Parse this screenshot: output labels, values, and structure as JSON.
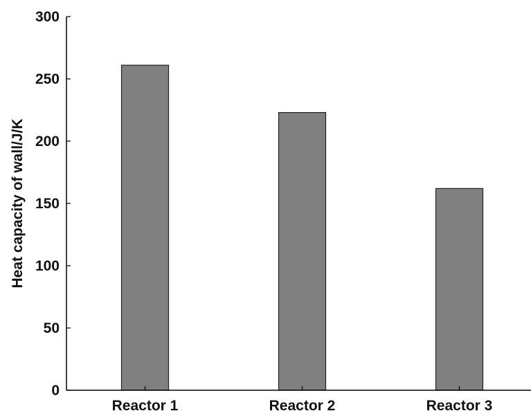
{
  "chart_data": {
    "type": "bar",
    "title": "",
    "xlabel": "",
    "ylabel": "Heat capacity of wall/J/K",
    "categories": [
      "Reactor 1",
      "Reactor 2",
      "Reactor 3"
    ],
    "values": [
      261,
      223,
      162
    ],
    "ylim": [
      0,
      300
    ],
    "yticks": [
      "0",
      "50",
      "100",
      "150",
      "200",
      "250",
      "300"
    ],
    "grid": false,
    "legend": "none",
    "colors": {
      "bar_fill": "#808080",
      "bar_stroke": "#222222",
      "axis": "#000000",
      "background": "#ffffff"
    }
  }
}
